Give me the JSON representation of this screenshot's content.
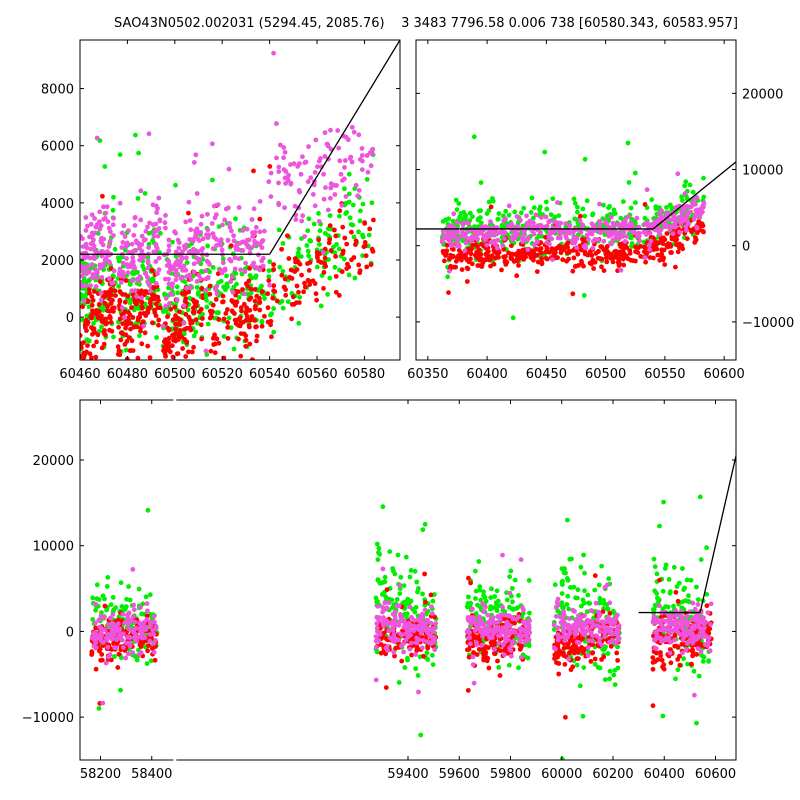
{
  "title": "SAO43N0502.002031 (5294.45, 2085.76)    3 3483 7796.58 0.006 738 [60580.343, 60583.957]",
  "colors": {
    "green": "#00ee00",
    "magenta": "#ee55dd",
    "red": "#ff0000",
    "line": "#000000"
  },
  "chart_data": [
    {
      "id": "top-left",
      "type": "scatter",
      "xlim": [
        60460,
        60595
      ],
      "ylim": [
        -1500,
        9700
      ],
      "xticks": [
        60460,
        60480,
        60500,
        60520,
        60540,
        60560,
        60580
      ],
      "yticks": [
        0,
        2000,
        4000,
        6000,
        8000
      ],
      "ytick_side": "left",
      "segments": [
        {
          "x": [
            60460,
            60540
          ],
          "y": [
            2200,
            2200
          ]
        },
        {
          "x": [
            60540,
            60595
          ],
          "y": [
            2200,
            9700
          ]
        }
      ],
      "clusters": [
        {
          "x0": 60460,
          "x1": 60475,
          "mag": [
            1800,
            2600,
            900
          ],
          "red": [
            -900,
            700,
            900
          ],
          "green": [
            700,
            1600,
            1500
          ]
        },
        {
          "x0": 60476,
          "x1": 60494,
          "mag": [
            1900,
            2600,
            1100
          ],
          "red": [
            -500,
            600,
            900
          ],
          "green": [
            900,
            1500,
            1600
          ]
        },
        {
          "x0": 60495,
          "x1": 60512,
          "mag": [
            1500,
            2300,
            1200
          ],
          "red": [
            -700,
            500,
            900
          ],
          "green": [
            200,
            1200,
            1600
          ]
        },
        {
          "x0": 60513,
          "x1": 60538,
          "mag": [
            2400,
            2500,
            1000
          ],
          "red": [
            -200,
            500,
            1100
          ],
          "green": [
            900,
            1300,
            1400
          ]
        },
        {
          "x0": 60539,
          "x1": 60584,
          "mag": [
            4600,
            5600,
            1100
          ],
          "red": [
            700,
            2800,
            1000
          ],
          "green": [
            1300,
            3500,
            1300
          ]
        }
      ]
    },
    {
      "id": "top-right",
      "type": "scatter",
      "xlim": [
        60340,
        60610
      ],
      "ylim": [
        -15000,
        27000
      ],
      "xticks": [
        60350,
        60400,
        60450,
        60500,
        60550,
        60600
      ],
      "yticks": [
        -10000,
        0,
        10000,
        20000
      ],
      "ytick_side": "right",
      "segments": [
        {
          "x": [
            60340,
            60540
          ],
          "y": [
            2200,
            2200
          ]
        },
        {
          "x": [
            60540,
            60610
          ],
          "y": [
            2200,
            11000
          ]
        }
      ],
      "clusters": [
        {
          "x0": 60362,
          "x1": 60410,
          "mag": [
            1500,
            1900,
            1200
          ],
          "red": [
            -1500,
            -800,
            1300
          ],
          "green": [
            2000,
            2500,
            2500
          ]
        },
        {
          "x0": 60412,
          "x1": 60470,
          "mag": [
            1900,
            2200,
            1200
          ],
          "red": [
            -1200,
            -1000,
            1300
          ],
          "green": [
            2400,
            2300,
            2500
          ]
        },
        {
          "x0": 60472,
          "x1": 60530,
          "mag": [
            1700,
            2200,
            1300
          ],
          "red": [
            -1300,
            -800,
            1400
          ],
          "green": [
            2200,
            2800,
            2500
          ]
        },
        {
          "x0": 60532,
          "x1": 60583,
          "mag": [
            2200,
            4800,
            1200
          ],
          "red": [
            -1000,
            2500,
            1400
          ],
          "green": [
            2500,
            5000,
            2300
          ]
        }
      ]
    },
    {
      "id": "bottom",
      "type": "scatter",
      "xlim": [
        58120,
        60680
      ],
      "ylim": [
        -15000,
        27000
      ],
      "xticks": [
        58200,
        58400,
        59400,
        59600,
        59800,
        60000,
        60200,
        60400,
        60600
      ],
      "yticks": [
        -10000,
        0,
        10000,
        20000
      ],
      "ytick_side": "left",
      "axis_break": 58490,
      "segments": [
        {
          "x": [
            60300,
            60540
          ],
          "y": [
            2200,
            2200
          ]
        },
        {
          "x": [
            60540,
            60680
          ],
          "y": [
            2200,
            20500
          ]
        }
      ],
      "clusters": [
        {
          "x0": 58165,
          "x1": 58420,
          "mag": [
            200,
            0,
            1800
          ],
          "red": [
            -1200,
            0,
            1800
          ],
          "green": [
            2200,
            0,
            3000
          ]
        },
        {
          "x0": 59275,
          "x1": 59510,
          "mag": [
            800,
            0,
            1800
          ],
          "red": [
            -1100,
            0,
            1600
          ],
          "green": [
            4000,
            0,
            4000
          ]
        },
        {
          "x0": 59630,
          "x1": 59875,
          "mag": [
            600,
            0,
            1800
          ],
          "red": [
            -1500,
            0,
            1700
          ],
          "green": [
            2500,
            0,
            3500
          ]
        },
        {
          "x0": 59970,
          "x1": 60225,
          "mag": [
            800,
            0,
            1800
          ],
          "red": [
            -1800,
            0,
            1800
          ],
          "green": [
            4000,
            0,
            4500
          ]
        },
        {
          "x0": 60355,
          "x1": 60585,
          "mag": [
            900,
            0,
            1900
          ],
          "red": [
            -1500,
            0,
            2000
          ],
          "green": [
            3000,
            0,
            3500
          ]
        }
      ]
    }
  ]
}
